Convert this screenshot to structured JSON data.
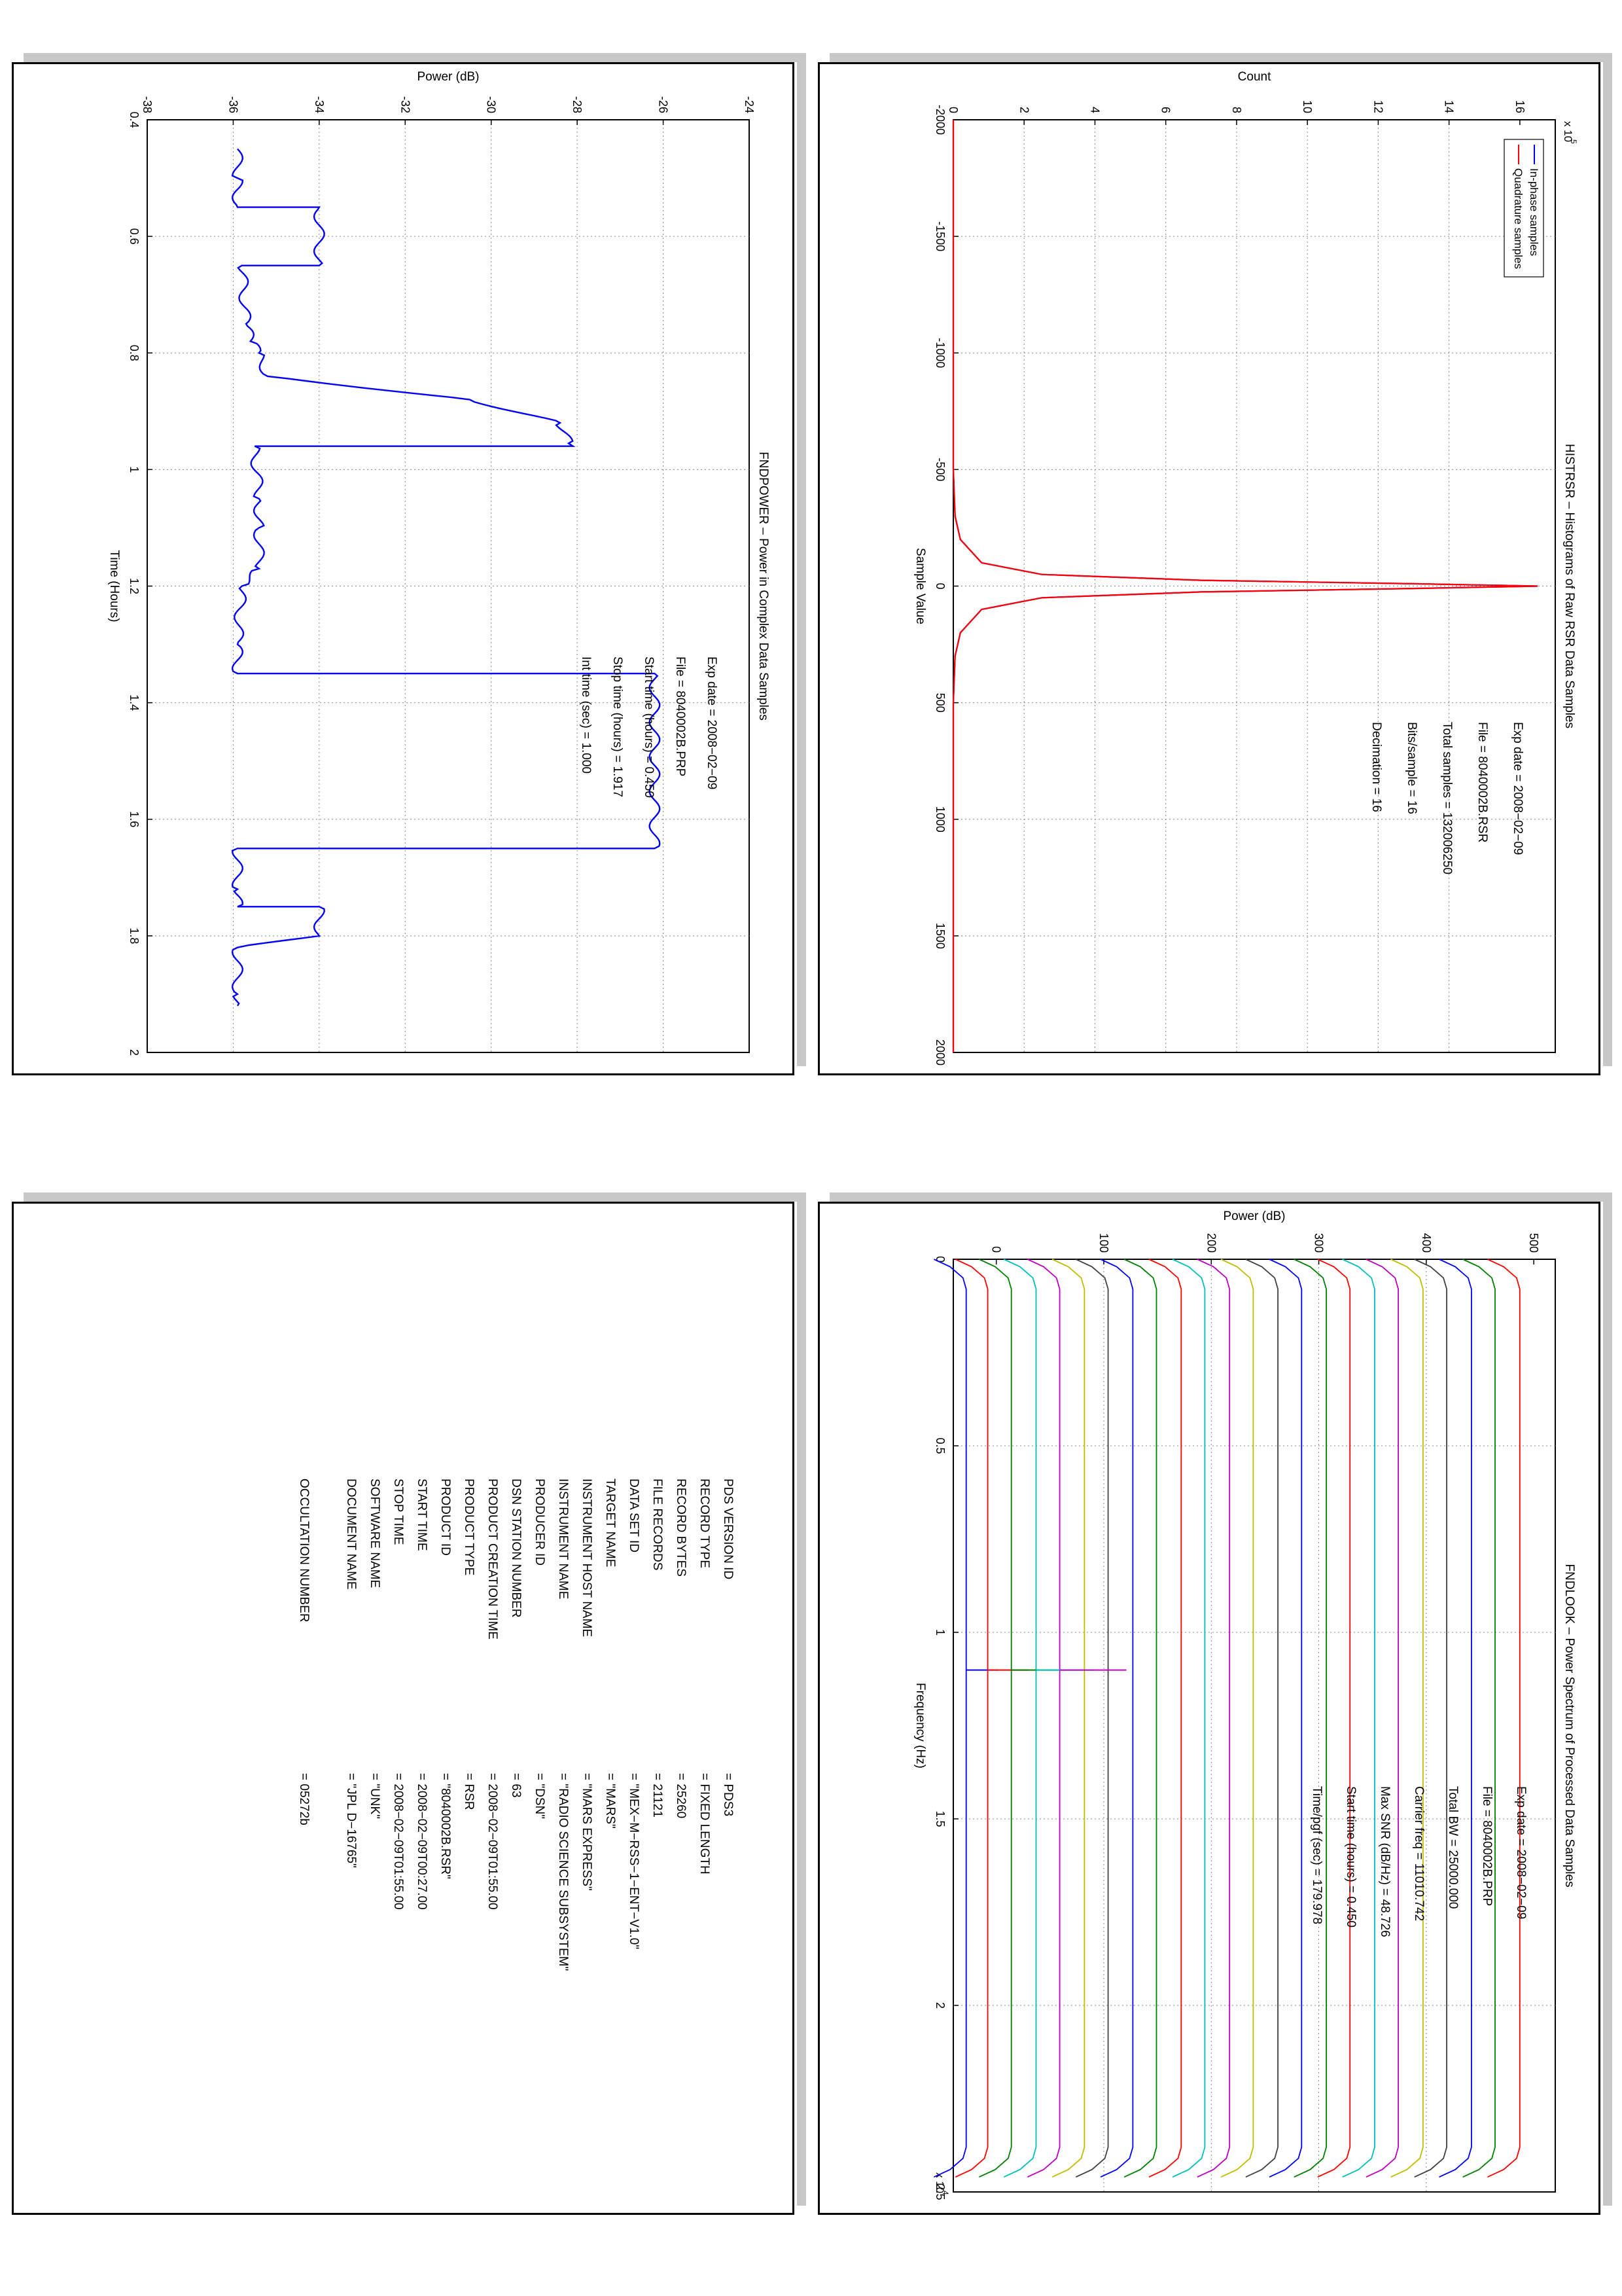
{
  "panels": {
    "histogram": {
      "chart_data": {
        "type": "line",
        "title": "HISTRSR – Histograms of Raw RSR Data Samples",
        "xlabel": "Sample Value",
        "ylabel": "Count",
        "y_multiplier_label": "x 10",
        "y_multiplier_exp": "5",
        "xlim": [
          -2000,
          2000
        ],
        "ylim": [
          0,
          17
        ],
        "xticks": [
          -2000,
          -1500,
          -1000,
          -500,
          0,
          500,
          1000,
          1500,
          2000
        ],
        "yticks": [
          0,
          2,
          4,
          6,
          8,
          10,
          12,
          14,
          16
        ],
        "grid": true,
        "legend_position": "top-left",
        "series": [
          {
            "name": "In-phase samples",
            "color": "#0000ff",
            "x": [
              -2000,
              -500,
              -300,
              -200,
              -100,
              -50,
              -25,
              -10,
              0,
              10,
              25,
              50,
              100,
              200,
              300,
              500,
              2000
            ],
            "values": [
              0,
              0,
              0.05,
              0.2,
              0.8,
              2.5,
              7,
              13,
              16.5,
              13,
              7,
              2.5,
              0.8,
              0.2,
              0.05,
              0,
              0
            ]
          },
          {
            "name": "Quadrature samples",
            "color": "#ff0000",
            "x": [
              -2000,
              -500,
              -300,
              -200,
              -100,
              -50,
              -25,
              -10,
              0,
              10,
              25,
              50,
              100,
              200,
              300,
              500,
              2000
            ],
            "values": [
              0,
              0,
              0.05,
              0.2,
              0.8,
              2.5,
              7,
              13,
              16.5,
              13,
              7,
              2.5,
              0.8,
              0.2,
              0.05,
              0,
              0
            ]
          }
        ]
      },
      "info": [
        {
          "label": "Exp date = 2008−02−09"
        },
        {
          "label": "File = 8040002B.RSR"
        },
        {
          "label": "Total samples =  132006250"
        },
        {
          "label": "Bits/sample    =          16"
        },
        {
          "label": "Decimation     =          16"
        }
      ]
    },
    "power": {
      "chart_data": {
        "type": "line",
        "title": "FNDPOWER – Power in Complex Data Samples",
        "xlabel": "Time (Hours)",
        "ylabel": "Power (dB)",
        "xlim": [
          0.4,
          2
        ],
        "ylim": [
          -38,
          -24
        ],
        "xticks": [
          0.4,
          0.6,
          0.8,
          1,
          1.2,
          1.4,
          1.6,
          1.8,
          2
        ],
        "yticks": [
          -38,
          -36,
          -34,
          -32,
          -30,
          -28,
          -26,
          -24
        ],
        "grid": true,
        "series": [
          {
            "name": "",
            "color": "#0000ff",
            "x": [
              0.45,
              0.5,
              0.55,
              0.55,
              0.65,
              0.65,
              0.75,
              0.78,
              0.8,
              0.84,
              0.88,
              0.92,
              0.955,
              0.96,
              0.96,
              1.05,
              1.1,
              1.17,
              1.2,
              1.3,
              1.35,
              1.35,
              1.65,
              1.65,
              1.72,
              1.75,
              1.75,
              1.8,
              1.8,
              1.82,
              1.9,
              1.92
            ],
            "values": [
              -35.9,
              -35.9,
              -35.9,
              -34,
              -34,
              -35.8,
              -35.7,
              -35.6,
              -35.4,
              -35.2,
              -30.5,
              -28.4,
              -28.2,
              -28.1,
              -35.5,
              -35.4,
              -35.4,
              -35.4,
              -35.8,
              -35.9,
              -35.9,
              -26.2,
              -26.2,
              -35.9,
              -35.9,
              -35.9,
              -34,
              -34,
              -34,
              -35.9,
              -35.9,
              -35.9
            ]
          }
        ]
      },
      "info": [
        {
          "label": "Exp date = 2008−02−09"
        },
        {
          "label": "File = 8040002B.PRP"
        },
        {
          "label": "Start time (hours) =  0.450"
        },
        {
          "label": "Stop time (hours) =   1.917"
        },
        {
          "label": "Int time (sec)  =      1.000"
        }
      ]
    },
    "spectrum": {
      "chart_data": {
        "type": "line",
        "title": "FNDLOOK – Power Spectrum of Processed Data Samples",
        "xlabel": "Frequency (Hz)",
        "ylabel": "Power (dB)",
        "x_multiplier_label": "x 10",
        "x_multiplier_exp": "4",
        "xlim": [
          0,
          2.5
        ],
        "ylim": [
          -40,
          520
        ],
        "xticks": [
          0,
          0.5,
          1,
          1.5,
          2,
          2.5
        ],
        "yticks": [
          0,
          100,
          200,
          300,
          400,
          500
        ],
        "grid": true,
        "spike_x": 1.101,
        "series_levels": [
          -28,
          -8,
          14,
          37,
          59,
          82,
          104,
          127,
          149,
          172,
          194,
          217,
          239,
          262,
          284,
          307,
          329,
          352,
          374,
          397,
          419,
          442,
          464,
          487
        ],
        "series_colors": [
          "#0000ff",
          "#ff0000",
          "#008000",
          "#00bfbf",
          "#bf00bf",
          "#bfbf00",
          "#404040",
          "#0000ff",
          "#008000",
          "#ff0000",
          "#00bfbf",
          "#bf00bf",
          "#bfbf00",
          "#404040",
          "#0000ff",
          "#008000",
          "#ff0000",
          "#00bfbf",
          "#bf00bf",
          "#bfbf00",
          "#404040",
          "#0000ff",
          "#008000",
          "#ff0000"
        ]
      },
      "info": [
        {
          "label": "Exp date = 2008−02−09"
        },
        {
          "label": "File = 8040002B.PRP"
        },
        {
          "label": "Total BW =        25000.000"
        },
        {
          "label": "Carrier freq =   11010.742"
        },
        {
          "label": "Max SNR (dB/Hz) =    48.726"
        },
        {
          "label": "Start time (hours) =    0.450"
        },
        {
          "label": "Time/pgf (sec) =     179.978"
        }
      ]
    },
    "label": {
      "rows": [
        {
          "key": "PDS VERSION ID",
          "value": "= PDS3"
        },
        {
          "key": "RECORD TYPE",
          "value": "= FIXED LENGTH"
        },
        {
          "key": "RECORD BYTES",
          "value": "= 25260"
        },
        {
          "key": "FILE RECORDS",
          "value": "= 21121"
        },
        {
          "key": "DATA SET ID",
          "value": "= \"MEX−M−RSS−1−ENT−V1.0\""
        },
        {
          "key": "TARGET NAME",
          "value": "= \"MARS\""
        },
        {
          "key": "INSTRUMENT HOST NAME",
          "value": "= \"MARS EXPRESS\""
        },
        {
          "key": "INSTRUMENT NAME",
          "value": "= \"RADIO SCIENCE SUBSYSTEM\""
        },
        {
          "key": "PRODUCER ID",
          "value": "= \"DSN\""
        },
        {
          "key": "DSN STATION NUMBER",
          "value": "= 63"
        },
        {
          "key": "PRODUCT CREATION TIME",
          "value": "= 2008−02−09T01:55.00"
        },
        {
          "key": "PRODUCT TYPE",
          "value": "= RSR"
        },
        {
          "key": "PRODUCT ID",
          "value": "= \"8040002B.RSR\""
        },
        {
          "key": "START TIME",
          "value": "= 2008−02−09T00:27.00"
        },
        {
          "key": "STOP TIME",
          "value": "= 2008−02−09T01:55.00"
        },
        {
          "key": "SOFTWARE NAME",
          "value": "= \"UNK\""
        },
        {
          "key": "DOCUMENT NAME",
          "value": "= \"JPL D−16765\""
        },
        {
          "key": "",
          "value": ""
        },
        {
          "key": "OCCULTATION NUMBER",
          "value": "= 05272b"
        }
      ]
    }
  }
}
